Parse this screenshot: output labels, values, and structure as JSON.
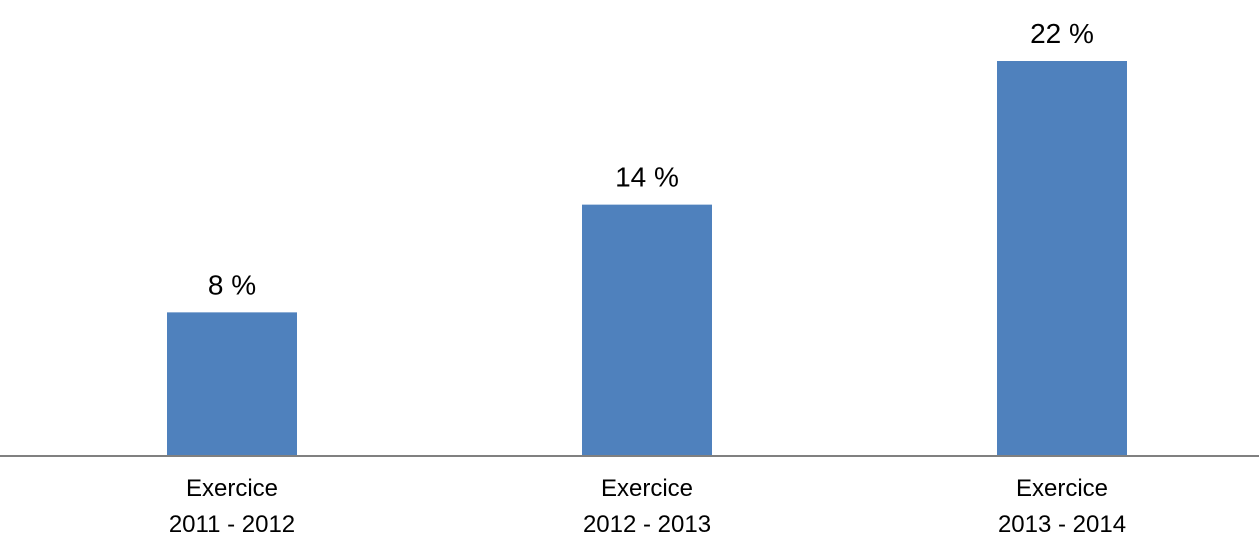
{
  "chart_data": {
    "type": "bar",
    "categories": [
      [
        "Exercice",
        "2011 - 2012"
      ],
      [
        "Exercice",
        "2012 - 2013"
      ],
      [
        "Exercice",
        "2013 - 2014"
      ]
    ],
    "values": [
      8,
      14,
      22
    ],
    "data_labels": [
      "8 %",
      "14 %",
      "22 %"
    ],
    "ylim": [
      0,
      22
    ],
    "grid": false,
    "colors": {
      "bar": "#4F81BD",
      "axis": "#808080"
    }
  }
}
